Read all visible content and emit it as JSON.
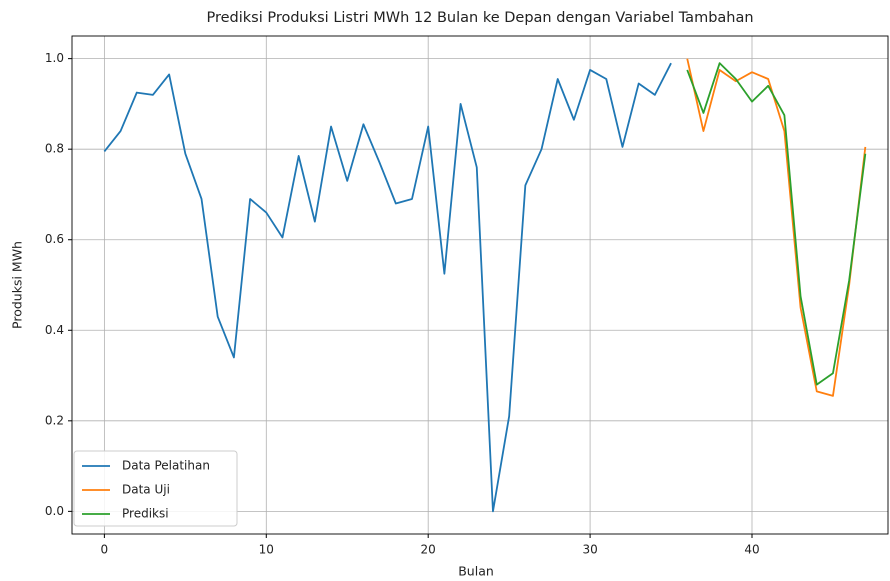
{
  "chart_data": {
    "type": "line",
    "title": "Prediksi Produksi Listri MWh 12 Bulan ke Depan dengan Variabel Tambahan",
    "xlabel": "Bulan",
    "ylabel": "Produksi MWh",
    "xlim": [
      -2,
      48.4
    ],
    "ylim": [
      -0.05,
      1.05
    ],
    "xticks": [
      0,
      10,
      20,
      30,
      40
    ],
    "yticks": [
      {
        "value": 0,
        "label": "0.0"
      },
      0.2,
      0.4,
      0.6,
      0.8,
      {
        "value": 1,
        "label": "1.0"
      }
    ],
    "grid": true,
    "legend": "lower left",
    "series": [
      {
        "name": "Data Pelatihan",
        "color": "#1f77b4",
        "x": [
          0,
          1,
          2,
          3,
          4,
          5,
          6,
          7,
          8,
          9,
          10,
          11,
          12,
          13,
          14,
          15,
          16,
          17,
          18,
          19,
          20,
          21,
          22,
          23,
          24,
          25,
          26,
          27,
          28,
          29,
          30,
          31,
          32,
          33,
          34,
          35
        ],
        "values": [
          0.795,
          0.84,
          0.925,
          0.92,
          0.965,
          0.79,
          0.69,
          0.43,
          0.34,
          0.69,
          0.66,
          0.605,
          0.785,
          0.64,
          0.85,
          0.73,
          0.855,
          0.77,
          0.68,
          0.69,
          0.85,
          0.525,
          0.9,
          0.76,
          0.0,
          0.21,
          0.72,
          0.8,
          0.955,
          0.865,
          0.975,
          0.955,
          0.805,
          0.945,
          0.92,
          0.99
        ]
      },
      {
        "name": "Data Uji",
        "color": "#ff7f0e",
        "x": [
          36,
          37,
          38,
          39,
          40,
          41,
          42,
          43,
          44,
          45,
          46,
          47
        ],
        "values": [
          1.0,
          0.84,
          0.975,
          0.95,
          0.97,
          0.955,
          0.84,
          0.45,
          0.265,
          0.255,
          0.5,
          0.805
        ]
      },
      {
        "name": "Prediksi",
        "color": "#2ca02c",
        "x": [
          36,
          37,
          38,
          39,
          40,
          41,
          42,
          43,
          44,
          45,
          46,
          47
        ],
        "values": [
          0.975,
          0.88,
          0.99,
          0.955,
          0.905,
          0.94,
          0.875,
          0.475,
          0.28,
          0.305,
          0.51,
          0.79
        ]
      }
    ]
  }
}
